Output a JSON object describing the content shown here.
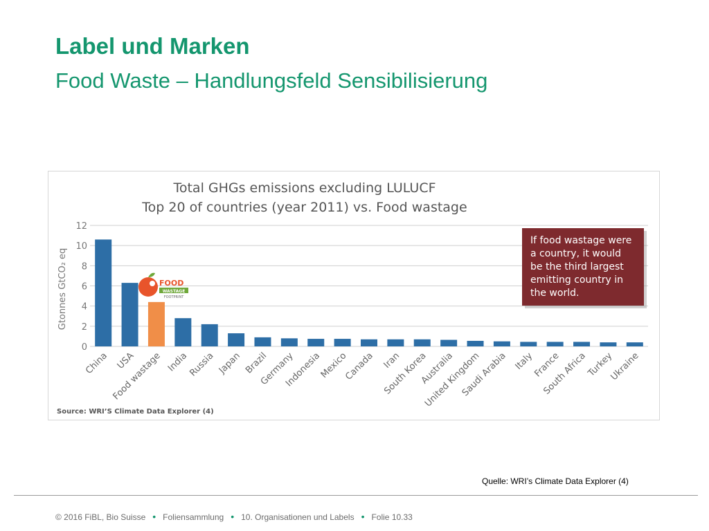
{
  "slide": {
    "title": "Label und Marken",
    "subtitle": "Food Waste – Handlungsfeld Sensibilisierung",
    "quelle": "Quelle: WRI’s Climate Data Explorer (4)"
  },
  "footer": {
    "copyright": "© 2016 FiBL, Bio Suisse",
    "collection": "Foliensammlung",
    "chapter": "10. Organisationen und Labels",
    "folie": "Folie 10.33"
  },
  "badge": {
    "line1": "FOOD",
    "line2": "WASTAGE",
    "line3": "FOOTPRINT"
  },
  "chart_data": {
    "type": "bar",
    "title": "Total GHGs emissions excluding LULUCF",
    "subtitle": "Top 20 of countries (year 2011) vs. Food wastage",
    "ylabel": "Gtonnes GtCO₂ eq",
    "ylim": [
      0,
      12
    ],
    "yticks": [
      0,
      2,
      4,
      6,
      8,
      10,
      12
    ],
    "grid": true,
    "categories": [
      "China",
      "USA",
      "Food wastage",
      "India",
      "Russia",
      "Japan",
      "Brazil",
      "Germany",
      "Indonesia",
      "Mexico",
      "Canada",
      "Iran",
      "South Korea",
      "Australia",
      "United Kingdom",
      "Saudi Arabia",
      "Italy",
      "France",
      "South Africa",
      "Turkey",
      "Ukraine"
    ],
    "values": [
      10.6,
      6.3,
      4.4,
      2.8,
      2.2,
      1.3,
      0.9,
      0.8,
      0.75,
      0.75,
      0.7,
      0.7,
      0.7,
      0.65,
      0.55,
      0.5,
      0.45,
      0.45,
      0.45,
      0.4,
      0.4
    ],
    "highlight_category": "Food wastage",
    "colors": {
      "bar": "#2d6ea6",
      "highlight": "#f08e48",
      "callout": "#7e2a2e",
      "grid": "#cfcfcf"
    },
    "callout": "If food wastage were a country, it would be the third largest emitting country in the world.",
    "source": "Source: WRI’S Climate Data Explorer (4)"
  }
}
